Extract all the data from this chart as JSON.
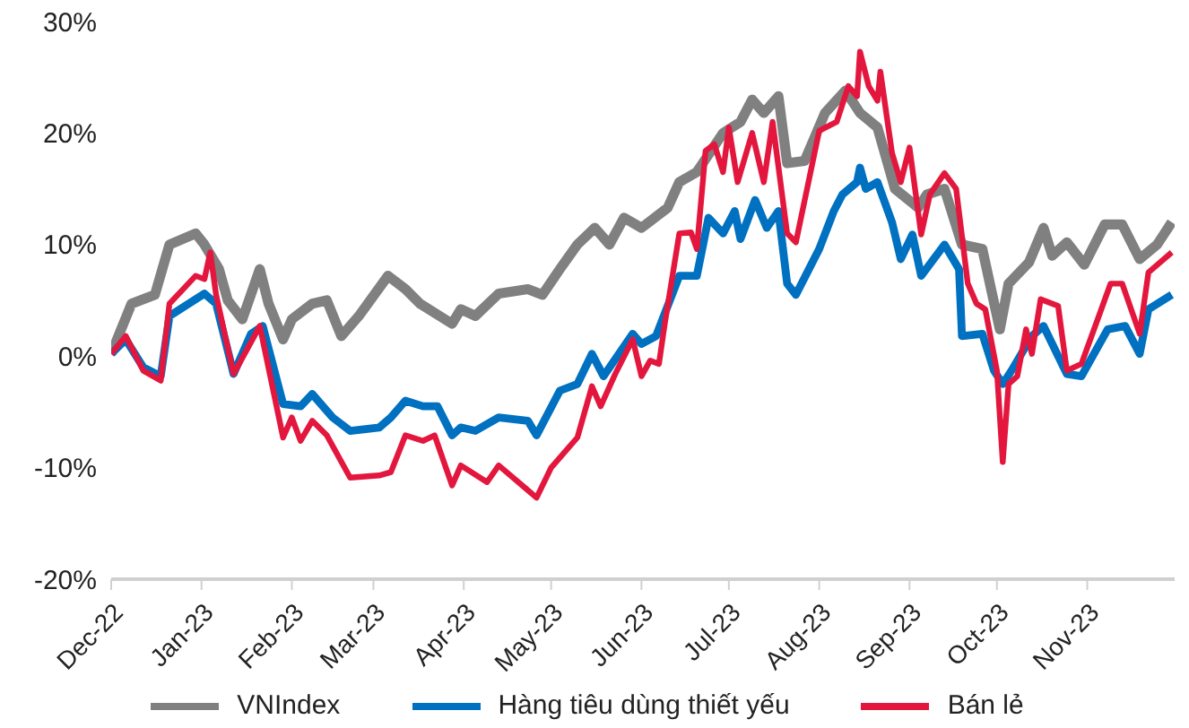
{
  "chart_data": {
    "type": "line",
    "legend": "bottom",
    "marker": "none",
    "line_style": "solid",
    "grid": false,
    "xlim": [
      "2022-12-01",
      "2023-12-01"
    ],
    "xticks": [
      {
        "value": "2022-12-01",
        "label": "Dec-22"
      },
      {
        "value": "2023-01-01",
        "label": "Jan-23"
      },
      {
        "value": "2023-02-01",
        "label": "Feb-23"
      },
      {
        "value": "2023-03-01",
        "label": "Mar-23"
      },
      {
        "value": "2023-04-01",
        "label": "Apr-23"
      },
      {
        "value": "2023-05-01",
        "label": "May-23"
      },
      {
        "value": "2023-06-01",
        "label": "Jun-23"
      },
      {
        "value": "2023-07-01",
        "label": "Jul-23"
      },
      {
        "value": "2023-08-01",
        "label": "Aug-23"
      },
      {
        "value": "2023-09-01",
        "label": "Sep-23"
      },
      {
        "value": "2023-10-01",
        "label": "Oct-23"
      },
      {
        "value": "2023-11-01",
        "label": "Nov-23"
      }
    ],
    "ylim": [
      -20,
      30
    ],
    "yticks": [
      {
        "value": -20,
        "label": "-20%"
      },
      {
        "value": -10,
        "label": "-10%"
      },
      {
        "value": 0,
        "label": "0%"
      },
      {
        "value": 10,
        "label": "10%"
      },
      {
        "value": 20,
        "label": "20%"
      },
      {
        "value": 30,
        "label": "30%"
      }
    ],
    "series": [
      {
        "name": "VNIndex",
        "color": "#808080",
        "x": [
          "2022-12-01",
          "2022-12-08",
          "2022-12-16",
          "2022-12-21",
          "2022-12-30",
          "2023-01-02",
          "2023-01-07",
          "2023-01-10",
          "2023-01-15",
          "2023-01-21",
          "2023-01-24",
          "2023-01-29",
          "2023-02-01",
          "2023-02-08",
          "2023-02-13",
          "2023-02-18",
          "2023-02-24",
          "2023-03-06",
          "2023-03-12",
          "2023-03-17",
          "2023-03-28",
          "2023-03-31",
          "2023-04-05",
          "2023-04-13",
          "2023-04-23",
          "2023-04-28",
          "2023-05-04",
          "2023-05-10",
          "2023-05-16",
          "2023-05-21",
          "2023-05-26",
          "2023-06-01",
          "2023-06-10",
          "2023-06-14",
          "2023-06-20",
          "2023-06-29",
          "2023-07-05",
          "2023-07-09",
          "2023-07-13",
          "2023-07-18",
          "2023-07-21",
          "2023-07-27",
          "2023-08-03",
          "2023-08-10",
          "2023-08-15",
          "2023-08-21",
          "2023-08-27",
          "2023-09-04",
          "2023-09-07",
          "2023-09-13",
          "2023-09-19",
          "2023-09-26",
          "2023-10-02",
          "2023-10-05",
          "2023-10-12",
          "2023-10-17",
          "2023-10-20",
          "2023-10-25",
          "2023-10-31",
          "2023-11-07",
          "2023-11-13",
          "2023-11-19",
          "2023-11-25",
          "2023-11-30"
        ],
        "values": [
          0.2,
          4.7,
          5.5,
          10,
          11,
          10,
          7.8,
          5,
          3.3,
          7.8,
          4.7,
          1.5,
          3.3,
          4.7,
          5,
          1.8,
          3.6,
          7.2,
          6,
          4.7,
          2.9,
          4.2,
          3.6,
          5.6,
          6,
          5.5,
          7.8,
          10,
          11.5,
          10,
          12.4,
          11.5,
          13.3,
          15.6,
          16.5,
          20,
          21,
          23,
          21.8,
          23.3,
          17.3,
          17.5,
          21.8,
          23.8,
          21.8,
          20.5,
          15,
          13.3,
          14.5,
          15,
          10,
          9.6,
          2.4,
          6.5,
          8.4,
          11.5,
          9,
          10.2,
          8.2,
          11.8,
          11.8,
          8.7,
          10,
          12
        ]
      },
      {
        "name": "Hàng tiêu dùng thiết yếu",
        "color": "#0070c0",
        "x": [
          "2022-12-01",
          "2022-12-06",
          "2022-12-12",
          "2022-12-18",
          "2022-12-21",
          "2023-01-02",
          "2023-01-06",
          "2023-01-12",
          "2023-01-18",
          "2023-01-22",
          "2023-01-29",
          "2023-02-04",
          "2023-02-08",
          "2023-02-15",
          "2023-02-21",
          "2023-03-03",
          "2023-03-07",
          "2023-03-12",
          "2023-03-18",
          "2023-03-23",
          "2023-03-28",
          "2023-03-31",
          "2023-04-05",
          "2023-04-13",
          "2023-04-23",
          "2023-04-26",
          "2023-05-04",
          "2023-05-10",
          "2023-05-15",
          "2023-05-19",
          "2023-05-29",
          "2023-06-01",
          "2023-06-06",
          "2023-06-14",
          "2023-06-20",
          "2023-06-24",
          "2023-06-29",
          "2023-07-03",
          "2023-07-05",
          "2023-07-10",
          "2023-07-14",
          "2023-07-18",
          "2023-07-21",
          "2023-07-24",
          "2023-08-01",
          "2023-08-06",
          "2023-08-09",
          "2023-08-14",
          "2023-08-15",
          "2023-08-17",
          "2023-08-21",
          "2023-08-26",
          "2023-08-29",
          "2023-09-02",
          "2023-09-05",
          "2023-09-13",
          "2023-09-18",
          "2023-09-19",
          "2023-09-26",
          "2023-09-30",
          "2023-10-03",
          "2023-10-06",
          "2023-10-13",
          "2023-10-17",
          "2023-10-25",
          "2023-10-30",
          "2023-11-08",
          "2023-11-14",
          "2023-11-19",
          "2023-11-22",
          "2023-11-30"
        ],
        "values": [
          0.2,
          1.5,
          -1,
          -1.8,
          3.6,
          5.6,
          4.7,
          -1.6,
          2,
          2.7,
          -4.3,
          -4.5,
          -3.4,
          -5.5,
          -6.7,
          -6.4,
          -5.5,
          -4,
          -4.5,
          -4.5,
          -7.1,
          -6.4,
          -6.7,
          -5.5,
          -5.8,
          -7.1,
          -3.1,
          -2.5,
          0.2,
          -1.8,
          2,
          1.1,
          1.8,
          7.2,
          7.2,
          12.4,
          11,
          13,
          10.5,
          14,
          11.5,
          13,
          6.5,
          5.5,
          9.6,
          13,
          14.5,
          15.6,
          16.9,
          15,
          15.6,
          12,
          8.7,
          10.9,
          7.2,
          10,
          7.8,
          1.8,
          2,
          -1.3,
          -2.5,
          -1.3,
          1.8,
          2.7,
          -1.6,
          -1.8,
          2.4,
          2.7,
          0.2,
          4.2,
          5.5
        ]
      },
      {
        "name": "Bán lẻ",
        "color": "#e3173e",
        "x": [
          "2022-12-01",
          "2022-12-06",
          "2022-12-12",
          "2022-12-18",
          "2022-12-21",
          "2022-12-30",
          "2023-01-02",
          "2023-01-04",
          "2023-01-06",
          "2023-01-12",
          "2023-01-21",
          "2023-01-29",
          "2023-02-01",
          "2023-02-04",
          "2023-02-08",
          "2023-02-13",
          "2023-02-21",
          "2023-03-03",
          "2023-03-07",
          "2023-03-12",
          "2023-03-18",
          "2023-03-22",
          "2023-03-28",
          "2023-03-31",
          "2023-04-09",
          "2023-04-13",
          "2023-04-22",
          "2023-04-26",
          "2023-05-01",
          "2023-05-10",
          "2023-05-15",
          "2023-05-18",
          "2023-05-23",
          "2023-05-29",
          "2023-06-01",
          "2023-06-04",
          "2023-06-07",
          "2023-06-09",
          "2023-06-14",
          "2023-06-18",
          "2023-06-20",
          "2023-06-23",
          "2023-06-26",
          "2023-06-29",
          "2023-07-01",
          "2023-07-04",
          "2023-07-09",
          "2023-07-13",
          "2023-07-16",
          "2023-07-21",
          "2023-07-24",
          "2023-08-01",
          "2023-08-07",
          "2023-08-11",
          "2023-08-14",
          "2023-08-15",
          "2023-08-18",
          "2023-08-21",
          "2023-08-22",
          "2023-08-26",
          "2023-08-29",
          "2023-09-01",
          "2023-09-05",
          "2023-09-08",
          "2023-09-13",
          "2023-09-17",
          "2023-09-21",
          "2023-09-24",
          "2023-09-27",
          "2023-10-01",
          "2023-10-03",
          "2023-10-05",
          "2023-10-08",
          "2023-10-11",
          "2023-10-13",
          "2023-10-16",
          "2023-10-22",
          "2023-10-25",
          "2023-10-30",
          "2023-11-05",
          "2023-11-09",
          "2023-11-13",
          "2023-11-19",
          "2023-11-22",
          "2023-11-30"
        ],
        "values": [
          0.2,
          1.8,
          -1.3,
          -2.2,
          4.7,
          7.2,
          6.9,
          9.3,
          5.5,
          -1.6,
          2.7,
          -7.3,
          -5.5,
          -7.6,
          -5.8,
          -7.1,
          -10.9,
          -10.7,
          -10.4,
          -7.1,
          -7.6,
          -7.1,
          -11.6,
          -9.8,
          -11.3,
          -9.8,
          -11.8,
          -12.7,
          -10,
          -7.3,
          -2.7,
          -4.5,
          -1.6,
          1.5,
          -1.8,
          -0.4,
          -0.7,
          2.9,
          11,
          11.1,
          9.6,
          18.4,
          19,
          16.5,
          20.5,
          15.6,
          20,
          15.6,
          21,
          11,
          10.2,
          20.2,
          21,
          24.2,
          23.3,
          27.3,
          24.2,
          22.9,
          25.5,
          18.2,
          15.6,
          18.7,
          10.9,
          14.5,
          16.4,
          15,
          6.5,
          4.7,
          4.2,
          -1.3,
          -9.5,
          -2.5,
          -1.8,
          2.4,
          0.2,
          5.1,
          4.5,
          -1.3,
          -0.7,
          3.6,
          6.5,
          6.5,
          2,
          7.5,
          9.3
        ]
      }
    ]
  }
}
